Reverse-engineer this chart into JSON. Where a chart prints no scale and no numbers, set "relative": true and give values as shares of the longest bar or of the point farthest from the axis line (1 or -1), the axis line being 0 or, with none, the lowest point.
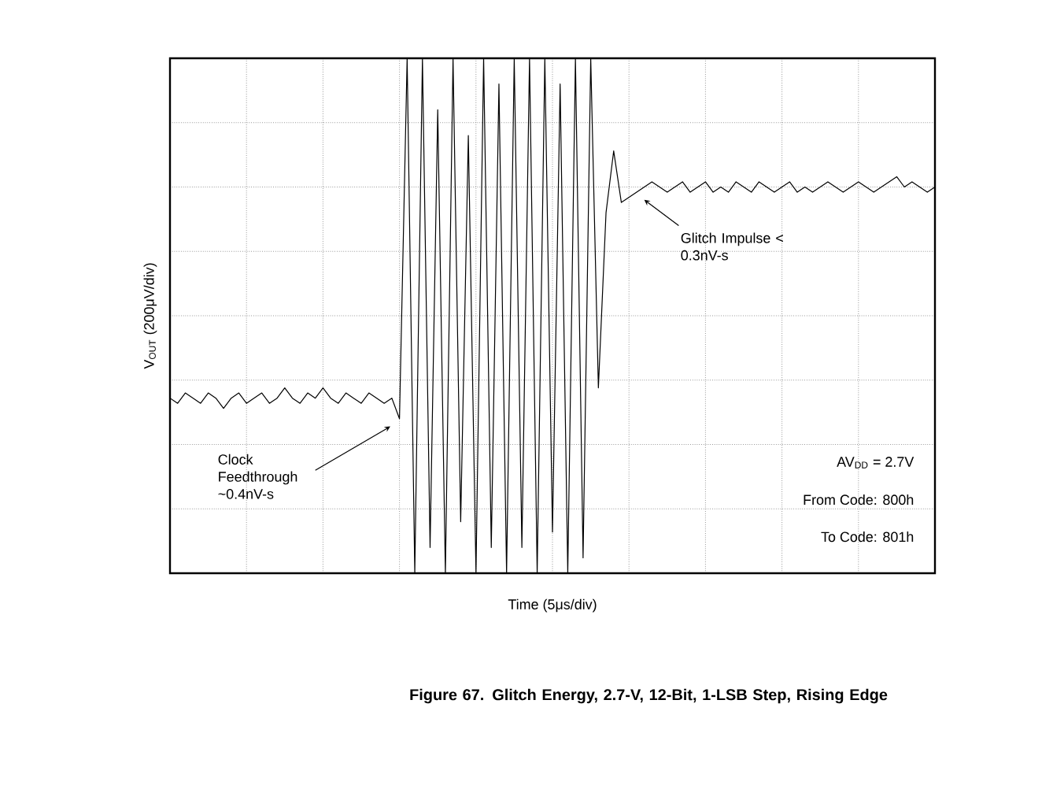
{
  "chart_data": {
    "type": "line",
    "relative": true,
    "grid": true,
    "title": "Figure 67. Glitch Energy, 2.7-V, 12-Bit, 1-LSB Step, Rising Edge",
    "xlabel": "Time (5μs/div)",
    "ylabel": "V$_{OUT}$ (200μV/div)",
    "categories": [
      null,
      null,
      null,
      null,
      null,
      null,
      null,
      null,
      null,
      null,
      null,
      null,
      null,
      null,
      null,
      null,
      null,
      null,
      null,
      null,
      null,
      null,
      null,
      null,
      null,
      null,
      null,
      null,
      null,
      null,
      null,
      null,
      null,
      null,
      null,
      null,
      null,
      null,
      null,
      null,
      null,
      null,
      null,
      null,
      null,
      null,
      null,
      null,
      null,
      null,
      null,
      null,
      null,
      null,
      null,
      null,
      null,
      null,
      null,
      null,
      null,
      null,
      null,
      null,
      null,
      null,
      null,
      null,
      null,
      null,
      null,
      null,
      null,
      null,
      null,
      null,
      null,
      null,
      null,
      null,
      null,
      null,
      null,
      null,
      null,
      null,
      null,
      null,
      null,
      null,
      null,
      null,
      null,
      null,
      null,
      null,
      null,
      null,
      null,
      null,
      null
    ],
    "series": [
      {
        "color": "#000000",
        "values": [
          0.34,
          0.33,
          0.35,
          0.34,
          0.33,
          0.35,
          0.34,
          0.32,
          0.34,
          0.35,
          0.33,
          0.34,
          0.35,
          0.33,
          0.34,
          0.36,
          0.34,
          0.33,
          0.35,
          0.34,
          0.36,
          0.34,
          0.33,
          0.35,
          0.34,
          0.33,
          0.35,
          0.34,
          0.33,
          0.34,
          0.3,
          1.0,
          0.0,
          1.0,
          0.05,
          0.9,
          0.0,
          1.0,
          0.1,
          0.85,
          0.0,
          1.0,
          0.05,
          0.95,
          0.0,
          1.0,
          0.05,
          1.0,
          0.0,
          1.0,
          0.08,
          0.95,
          0.0,
          1.0,
          0.03,
          1.0,
          0.36,
          0.7,
          0.82,
          0.72,
          0.73,
          0.74,
          0.75,
          0.76,
          0.75,
          0.74,
          0.75,
          0.76,
          0.74,
          0.75,
          0.76,
          0.74,
          0.75,
          0.74,
          0.76,
          0.75,
          0.74,
          0.76,
          0.75,
          0.74,
          0.75,
          0.76,
          0.74,
          0.75,
          0.74,
          0.75,
          0.76,
          0.75,
          0.74,
          0.75,
          0.76,
          0.75,
          0.74,
          0.75,
          0.76,
          0.77,
          0.75,
          0.76,
          0.75,
          0.74,
          0.75
        ]
      }
    ],
    "annotations": [
      "Clock Feedthrough ~0.4nV-s",
      "Glitch Impulse < 0.3nV-s",
      "AV$_{DD}$ = 2.7V",
      "From Code: 800h",
      "To Code: 801h"
    ]
  }
}
